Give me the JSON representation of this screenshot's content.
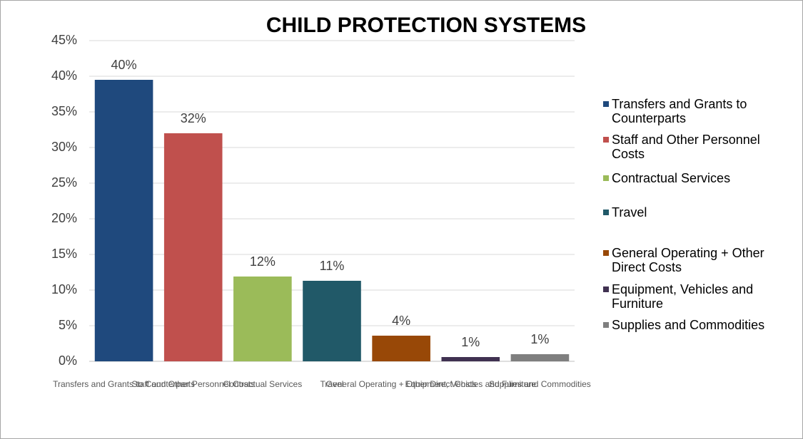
{
  "chart_data": {
    "type": "bar",
    "title": "CHILD PROTECTION SYSTEMS",
    "categories": [
      "Transfers and Grants to Counterparts",
      "Staff and Other Personnel Costs",
      "Contractual Services",
      "Travel",
      "General Operating + Other Direct Costs",
      "Equipment, Vehicles and Furniture",
      "Supplies and Commodities"
    ],
    "values": [
      39.5,
      32,
      11.9,
      11.3,
      3.6,
      0.6,
      1.0
    ],
    "value_labels": [
      "40%",
      "32%",
      "12%",
      "11%",
      "4%",
      "1%",
      "1%"
    ],
    "colors": [
      "#1f497d",
      "#c0504d",
      "#9bbb59",
      "#215968",
      "#984807",
      "#403151",
      "#7f7f7f"
    ],
    "ylim": [
      0,
      45
    ],
    "yticks": [
      {
        "value": 0,
        "label": "0%"
      },
      {
        "value": 5,
        "label": "5%"
      },
      {
        "value": 10,
        "label": "10%"
      },
      {
        "value": 15,
        "label": "15%"
      },
      {
        "value": 20,
        "label": "20%"
      },
      {
        "value": 25,
        "label": "25%"
      },
      {
        "value": 30,
        "label": "30%"
      },
      {
        "value": 35,
        "label": "35%"
      },
      {
        "value": 40,
        "label": "40%"
      },
      {
        "value": 45,
        "label": "45%"
      }
    ],
    "grid": true,
    "legend": "right"
  }
}
